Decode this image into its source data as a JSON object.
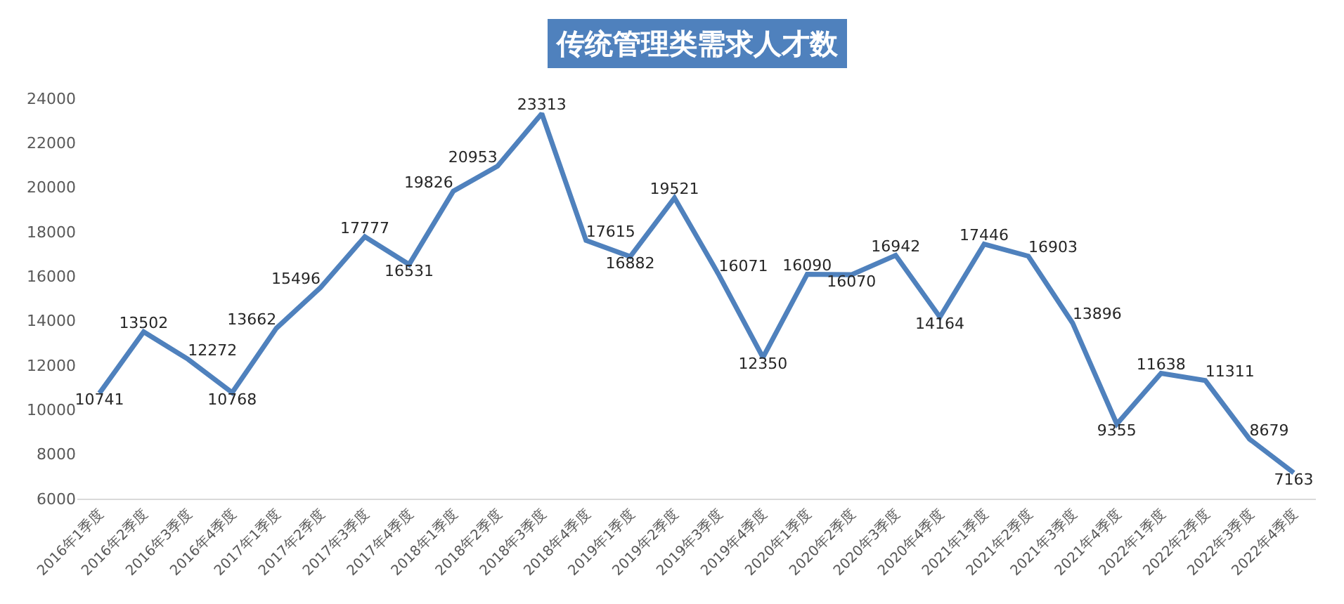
{
  "chart_data": {
    "type": "line",
    "title": "传统管理类需求人才数",
    "categories": [
      "2016年1季度",
      "2016年2季度",
      "2016年3季度",
      "2016年4季度",
      "2017年1季度",
      "2017年2季度",
      "2017年3季度",
      "2017年4季度",
      "2018年1季度",
      "2018年2季度",
      "2018年3季度",
      "2018年4季度",
      "2019年1季度",
      "2019年2季度",
      "2019年3季度",
      "2019年4季度",
      "2020年1季度",
      "2020年2季度",
      "2020年3季度",
      "2020年4季度",
      "2021年1季度",
      "2021年2季度",
      "2021年3季度",
      "2021年4季度",
      "2022年1季度",
      "2022年2季度",
      "2022年3季度",
      "2022年4季度"
    ],
    "series": [
      {
        "color": "#4f81bd",
        "values": [
          10741,
          13502,
          12272,
          10768,
          13662,
          15496,
          17777,
          16531,
          19826,
          20953,
          23313,
          17615,
          16882,
          19521,
          16071,
          12350,
          16090,
          16070,
          16942,
          14164,
          17446,
          16903,
          13896,
          9355,
          11638,
          11311,
          8679,
          7163
        ]
      }
    ],
    "ylim": [
      6000,
      24000
    ],
    "yticks": [
      6000,
      8000,
      10000,
      12000,
      14000,
      16000,
      18000,
      20000,
      22000,
      24000
    ],
    "data_labels": true,
    "grid": false,
    "marker": "none",
    "line_style": "solid"
  }
}
